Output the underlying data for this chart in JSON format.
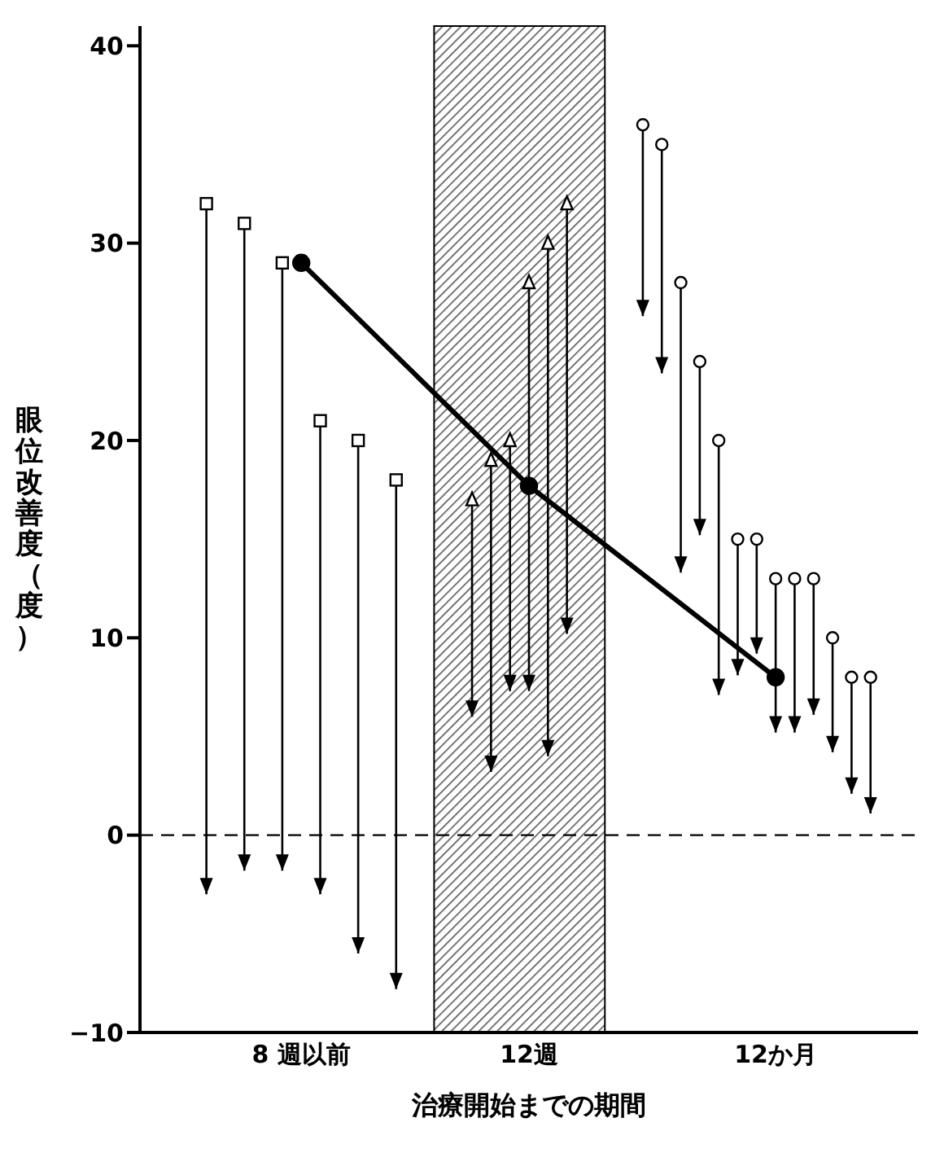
{
  "chart_data": {
    "type": "scatter",
    "xlabel": "治療開始までの期間",
    "ylabel": "眼位改善度（度）",
    "categories": [
      null,
      null,
      null,
      null,
      null,
      null,
      null,
      null,
      "8 週以前",
      null,
      null,
      null,
      null,
      null,
      null,
      null,
      null,
      null,
      null,
      null,
      "12週",
      null,
      null,
      null,
      null,
      null,
      null,
      null,
      null,
      null,
      null,
      null,
      null,
      "12か月",
      null,
      null,
      null,
      null,
      null,
      null,
      null
    ],
    "ylim": [
      -10,
      41
    ],
    "yticks": [
      {
        "value": -10,
        "label": "−10"
      },
      0,
      10,
      20,
      30,
      40
    ],
    "grid": false,
    "series": [
      {
        "marker": "square",
        "color": "#000000",
        "values": [
          null,
          null,
          null,
          32,
          null,
          31,
          null,
          29,
          null,
          21,
          null,
          20,
          null,
          18,
          null,
          null,
          null,
          null,
          null,
          null,
          null,
          null,
          null,
          null,
          null,
          null,
          null,
          null,
          null,
          null,
          null,
          null,
          null,
          null,
          null,
          null,
          null,
          null,
          null,
          null,
          null
        ],
        "errors": [
          null,
          null,
          null,
          [
            -3,
            32
          ],
          null,
          [
            -1.8,
            31
          ],
          null,
          [
            -1.8,
            29
          ],
          null,
          [
            -3,
            21
          ],
          null,
          [
            -6,
            20
          ],
          null,
          [
            -7.8,
            18
          ],
          null,
          null,
          null,
          null,
          null,
          null,
          null,
          null,
          null,
          null,
          null,
          null,
          null,
          null,
          null,
          null,
          null,
          null,
          null,
          null,
          null,
          null,
          null,
          null,
          null,
          null,
          null
        ]
      },
      {
        "marker": "triangle",
        "color": "#000000",
        "values": [
          null,
          null,
          null,
          null,
          null,
          null,
          null,
          null,
          null,
          null,
          null,
          null,
          null,
          null,
          null,
          null,
          null,
          17,
          19,
          20,
          28,
          30,
          32,
          null,
          null,
          null,
          null,
          null,
          null,
          null,
          null,
          null,
          null,
          null,
          null,
          null,
          null,
          null,
          null,
          null,
          null
        ],
        "errors": [
          null,
          null,
          null,
          null,
          null,
          null,
          null,
          null,
          null,
          null,
          null,
          null,
          null,
          null,
          null,
          null,
          null,
          [
            6,
            17
          ],
          [
            3.2,
            19
          ],
          [
            7.3,
            20
          ],
          [
            7.3,
            28
          ],
          [
            4,
            30
          ],
          [
            10.2,
            32
          ],
          null,
          null,
          null,
          null,
          null,
          null,
          null,
          null,
          null,
          null,
          null,
          null,
          null,
          null,
          null,
          null,
          null,
          null
        ]
      },
      {
        "marker": "circle",
        "color": "#000000",
        "values": [
          null,
          null,
          null,
          null,
          null,
          null,
          null,
          null,
          null,
          null,
          null,
          null,
          null,
          null,
          null,
          null,
          null,
          null,
          null,
          null,
          null,
          null,
          null,
          null,
          null,
          null,
          36,
          35,
          28,
          24,
          20,
          15,
          15,
          13,
          13,
          13,
          10,
          8,
          8,
          null,
          null
        ],
        "errors": [
          null,
          null,
          null,
          null,
          null,
          null,
          null,
          null,
          null,
          null,
          null,
          null,
          null,
          null,
          null,
          null,
          null,
          null,
          null,
          null,
          null,
          null,
          null,
          null,
          null,
          null,
          [
            26.3,
            36
          ],
          [
            23.4,
            35
          ],
          [
            13.3,
            28
          ],
          [
            15.2,
            24
          ],
          [
            7.1,
            20
          ],
          [
            8.1,
            15
          ],
          [
            9.2,
            15
          ],
          [
            5.2,
            13
          ],
          [
            5.2,
            13
          ],
          [
            6.1,
            13
          ],
          [
            4.2,
            10
          ],
          [
            2.1,
            8
          ],
          [
            1.1,
            8
          ],
          null,
          null
        ]
      },
      {
        "type": "line",
        "marker": "circle",
        "line_style": "solid",
        "color": "#000000",
        "x": [
          "8 週以前",
          "12週",
          "12か月"
        ],
        "values": [
          29,
          17.7,
          8
        ]
      }
    ],
    "ref_lines": [
      {
        "axis": "y",
        "value": 0,
        "color": "#000000",
        "line_style": "dashed"
      }
    ]
  }
}
